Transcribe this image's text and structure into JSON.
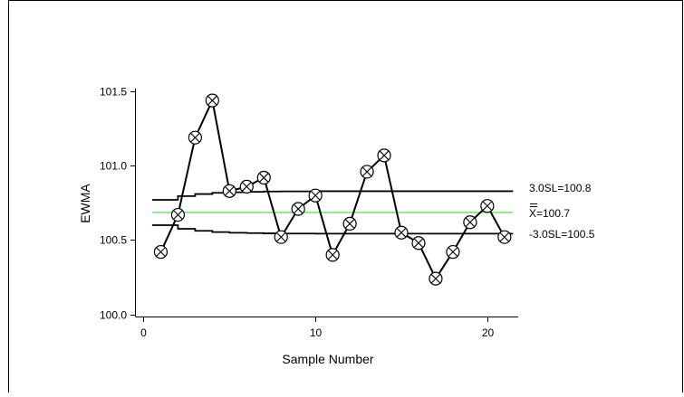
{
  "chart_data": {
    "type": "line",
    "title": "",
    "xlabel": "Sample Number",
    "ylabel": "EWMA",
    "xlim": [
      -0.5,
      21.8
    ],
    "ylim": [
      99.985,
      101.52
    ],
    "x_ticks": [
      0,
      10,
      20
    ],
    "y_ticks": [
      100.0,
      100.5,
      101.0,
      101.5
    ],
    "x_tick_labels": [
      "0",
      "10",
      "20"
    ],
    "y_tick_labels": [
      "100.0",
      "100.5",
      "101.0",
      "101.5"
    ],
    "grid": false,
    "colors": {
      "series": "#000000",
      "center_line": "#5fe35f",
      "control_limits": "#000000",
      "frame": "#000000"
    },
    "center_line": {
      "value": 100.686,
      "label": "X=100.7"
    },
    "upper_control_limit": {
      "label": "3.0SL=100.8",
      "x": [
        0.5,
        1,
        2,
        3,
        4,
        5,
        6,
        7,
        8,
        9,
        10,
        11,
        12,
        13,
        14,
        15,
        16,
        17,
        18,
        19,
        20,
        21,
        21.5
      ],
      "values": [
        100.771,
        100.771,
        100.796,
        100.81,
        100.818,
        100.822,
        100.825,
        100.827,
        100.828,
        100.828,
        100.829,
        100.829,
        100.829,
        100.829,
        100.829,
        100.829,
        100.829,
        100.829,
        100.829,
        100.829,
        100.829,
        100.829,
        100.829
      ]
    },
    "lower_control_limit": {
      "label": "-3.0SL=100.5",
      "x": [
        0.5,
        1,
        2,
        3,
        4,
        5,
        6,
        7,
        8,
        9,
        10,
        11,
        12,
        13,
        14,
        15,
        16,
        17,
        18,
        19,
        20,
        21,
        21.5
      ],
      "values": [
        100.6,
        100.6,
        100.576,
        100.562,
        100.554,
        100.549,
        100.547,
        100.545,
        100.544,
        100.544,
        100.543,
        100.543,
        100.543,
        100.543,
        100.543,
        100.543,
        100.543,
        100.543,
        100.543,
        100.543,
        100.543,
        100.543,
        100.543
      ]
    },
    "series": [
      {
        "x": [
          1,
          2,
          3,
          4,
          5,
          6,
          7,
          8,
          9,
          10,
          11,
          12,
          13,
          14,
          15,
          16,
          17,
          18,
          19,
          20,
          21
        ],
        "values": [
          100.42,
          100.67,
          101.19,
          101.44,
          100.83,
          100.86,
          100.92,
          100.52,
          100.71,
          100.8,
          100.4,
          100.61,
          100.96,
          101.07,
          100.55,
          100.48,
          100.24,
          100.42,
          100.62,
          100.73,
          100.52
        ]
      }
    ]
  }
}
